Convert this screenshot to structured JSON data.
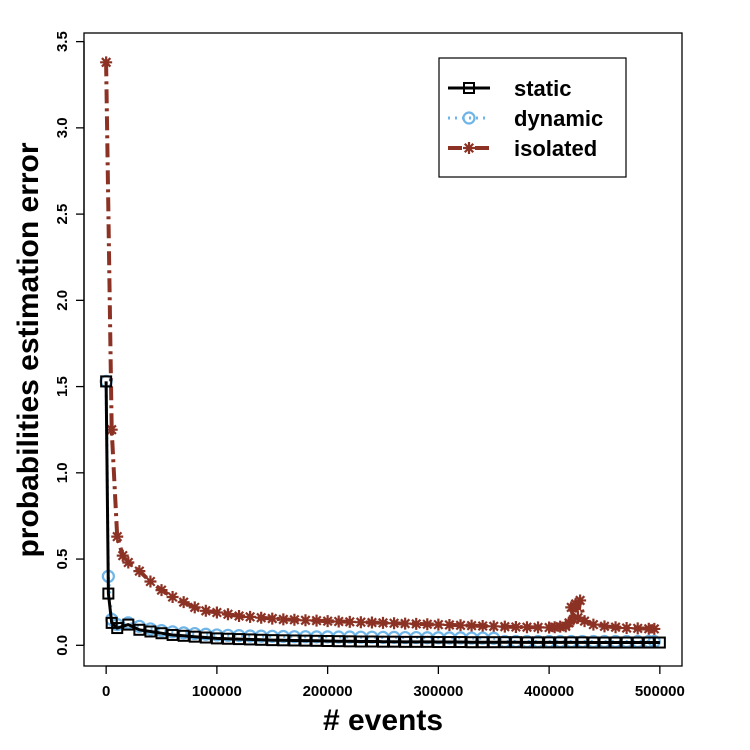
{
  "chart_data": {
    "type": "line",
    "title": "",
    "xlabel": "# events",
    "ylabel": "probabilities estimation error",
    "xlim": [
      -20000,
      520000
    ],
    "ylim": [
      -0.12,
      3.55
    ],
    "xticks": [
      0,
      100000,
      200000,
      300000,
      400000,
      500000
    ],
    "xtick_labels": [
      "0",
      "100000",
      "200000",
      "300000",
      "400000",
      "500000"
    ],
    "yticks": [
      0.0,
      0.5,
      1.0,
      1.5,
      2.0,
      2.5,
      3.0,
      3.5
    ],
    "ytick_labels": [
      "0.0",
      "0.5",
      "1.0",
      "1.5",
      "2.0",
      "2.5",
      "3.0",
      "3.5"
    ],
    "grid": false,
    "legend_position": "top-right",
    "series": [
      {
        "name": "isolated",
        "color": "#8B3224",
        "line_style": "dashdot",
        "marker": "asterisk",
        "x": [
          0,
          5000,
          10000,
          15000,
          20000,
          30000,
          40000,
          50000,
          60000,
          70000,
          80000,
          90000,
          100000,
          110000,
          120000,
          130000,
          140000,
          150000,
          160000,
          170000,
          180000,
          190000,
          200000,
          210000,
          220000,
          230000,
          240000,
          250000,
          260000,
          270000,
          280000,
          290000,
          300000,
          310000,
          320000,
          330000,
          340000,
          350000,
          360000,
          370000,
          380000,
          390000,
          400000,
          405000,
          410000,
          415000,
          418000,
          420000,
          422000,
          424000,
          426000,
          428000,
          432000,
          440000,
          450000,
          460000,
          470000,
          480000,
          490000,
          495000
        ],
        "y": [
          3.38,
          1.25,
          0.63,
          0.52,
          0.48,
          0.43,
          0.37,
          0.32,
          0.28,
          0.25,
          0.22,
          0.2,
          0.19,
          0.18,
          0.17,
          0.165,
          0.16,
          0.155,
          0.15,
          0.148,
          0.145,
          0.143,
          0.14,
          0.138,
          0.136,
          0.134,
          0.132,
          0.13,
          0.128,
          0.126,
          0.124,
          0.122,
          0.12,
          0.118,
          0.116,
          0.114,
          0.112,
          0.11,
          0.108,
          0.106,
          0.105,
          0.104,
          0.103,
          0.105,
          0.108,
          0.11,
          0.13,
          0.22,
          0.15,
          0.24,
          0.16,
          0.26,
          0.14,
          0.12,
          0.11,
          0.105,
          0.1,
          0.098,
          0.096,
          0.095
        ]
      },
      {
        "name": "dynamic",
        "color": "#6FB5E8",
        "line_style": "dotted",
        "marker": "circle",
        "x": [
          0,
          2000,
          5000,
          10000,
          20000,
          30000,
          40000,
          50000,
          60000,
          70000,
          80000,
          90000,
          100000,
          110000,
          120000,
          130000,
          140000,
          150000,
          160000,
          170000,
          180000,
          190000,
          200000,
          210000,
          220000,
          230000,
          240000,
          250000,
          260000,
          270000,
          280000,
          290000,
          300000,
          310000,
          320000,
          330000,
          340000,
          350000,
          360000,
          370000,
          380000,
          390000,
          400000,
          410000,
          420000,
          430000,
          440000,
          450000,
          460000,
          470000,
          480000,
          490000,
          495000
        ],
        "y": [
          1.53,
          0.4,
          0.15,
          0.12,
          0.13,
          0.11,
          0.095,
          0.085,
          0.078,
          0.072,
          0.068,
          0.064,
          0.06,
          0.058,
          0.056,
          0.054,
          0.053,
          0.052,
          0.051,
          0.05,
          0.05,
          0.049,
          0.049,
          0.048,
          0.048,
          0.047,
          0.047,
          0.046,
          0.046,
          0.045,
          0.045,
          0.044,
          0.044,
          0.043,
          0.043,
          0.042,
          0.042,
          0.041,
          0.022,
          0.022,
          0.022,
          0.022,
          0.022,
          0.022,
          0.022,
          0.022,
          0.022,
          0.022,
          0.022,
          0.022,
          0.022,
          0.022,
          0.022
        ]
      },
      {
        "name": "static",
        "color": "#000000",
        "line_style": "solid",
        "marker": "square",
        "x": [
          0,
          2000,
          5000,
          10000,
          20000,
          30000,
          40000,
          50000,
          60000,
          70000,
          80000,
          90000,
          100000,
          110000,
          120000,
          130000,
          140000,
          150000,
          160000,
          170000,
          180000,
          190000,
          200000,
          210000,
          220000,
          230000,
          240000,
          250000,
          260000,
          270000,
          280000,
          290000,
          300000,
          310000,
          320000,
          330000,
          340000,
          350000,
          360000,
          370000,
          380000,
          390000,
          400000,
          410000,
          420000,
          430000,
          440000,
          450000,
          460000,
          470000,
          480000,
          490000,
          500000
        ],
        "y": [
          1.53,
          0.3,
          0.13,
          0.1,
          0.12,
          0.09,
          0.08,
          0.07,
          0.06,
          0.055,
          0.05,
          0.045,
          0.04,
          0.038,
          0.036,
          0.034,
          0.032,
          0.03,
          0.029,
          0.028,
          0.027,
          0.026,
          0.025,
          0.024,
          0.023,
          0.022,
          0.022,
          0.021,
          0.021,
          0.02,
          0.02,
          0.02,
          0.019,
          0.019,
          0.019,
          0.018,
          0.018,
          0.018,
          0.018,
          0.018,
          0.017,
          0.017,
          0.017,
          0.017,
          0.017,
          0.017,
          0.016,
          0.016,
          0.016,
          0.016,
          0.016,
          0.016,
          0.016
        ]
      }
    ],
    "legend_order": [
      "static",
      "dynamic",
      "isolated"
    ]
  }
}
